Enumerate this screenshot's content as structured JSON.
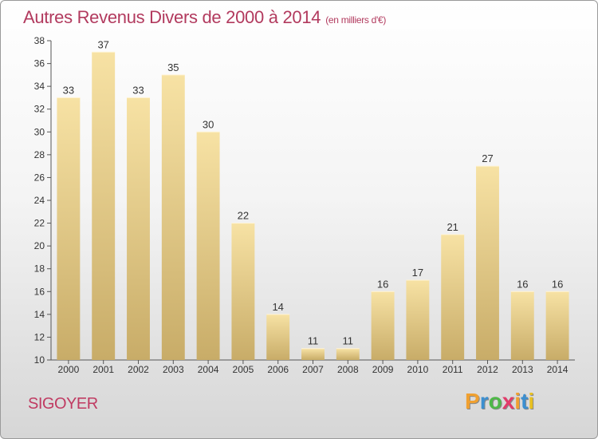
{
  "title": "Autres Revenus Divers de 2000 à 2014",
  "title_unit": "(en milliers d'€)",
  "location": "SIGOYER",
  "logo": {
    "letters": [
      "P",
      "r",
      "o",
      "x",
      "i",
      "t",
      "i"
    ],
    "colors": [
      "#f0a030",
      "#3c8fd0",
      "#4fb848",
      "#e23b6a",
      "#f0a030",
      "#3c8fd0",
      "#e8c020"
    ]
  },
  "chart_data": {
    "type": "bar",
    "categories": [
      "2000",
      "2001",
      "2002",
      "2003",
      "2004",
      "2005",
      "2006",
      "2007",
      "2008",
      "2009",
      "2010",
      "2011",
      "2012",
      "2013",
      "2014"
    ],
    "values": [
      33,
      37,
      33,
      35,
      30,
      22,
      14,
      11,
      11,
      16,
      17,
      21,
      27,
      16,
      16
    ],
    "ylim": [
      10,
      38
    ],
    "yticks": [
      10,
      12,
      14,
      16,
      18,
      20,
      22,
      24,
      26,
      28,
      30,
      32,
      34,
      36,
      38
    ],
    "grid": false,
    "bar_color": "#e8cf8a"
  }
}
